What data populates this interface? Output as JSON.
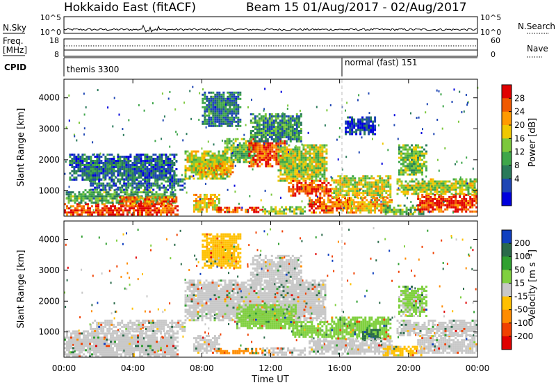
{
  "header": {
    "title": "Hokkaido East (fitACF)",
    "subtitle": "Beam 15 01/Aug/2017 - 02/Aug/2017"
  },
  "top_panels": {
    "nsky_label": "N.Sky",
    "nsearch_label": "N.Search",
    "nsky_ticks": [
      "10^5",
      "10^0"
    ],
    "nsearch_ticks": [
      "10^5",
      "10^0"
    ],
    "freq_label_line1": "Freq.",
    "freq_label_line2": "[MHz]",
    "freq_ticks": [
      "18",
      "8"
    ],
    "nave_label": "Nave",
    "nave_ticks": [
      "60",
      "0"
    ],
    "cpid_label": "CPID",
    "cpid_segments": [
      {
        "label": "themis 3300",
        "start_hour": 0
      },
      {
        "label": "normal (fast) 151",
        "start_hour": 16
      }
    ]
  },
  "chart_data": [
    {
      "type": "heatmap",
      "panel": "power",
      "ylabel": "Slant Range [km]",
      "yticks": [
        1000,
        2000,
        3000,
        4000
      ],
      "ylim": [
        180,
        4600
      ],
      "xlim": [
        0,
        24
      ],
      "xticks": [
        0,
        4,
        8,
        12,
        16,
        20,
        24
      ],
      "colorbar": {
        "label": "Power [dB]",
        "ticks": [
          "28",
          "24",
          "20",
          "16",
          "12",
          "8",
          "4"
        ],
        "colors": [
          "#0000dd",
          "#1e46b4",
          "#2a7a5a",
          "#3ea64a",
          "#7cc83c",
          "#f0c800",
          "#ff9a00",
          "#f05a00",
          "#e00000"
        ]
      },
      "regions": [
        {
          "t0": 0.0,
          "t1": 6.6,
          "r0": 200,
          "r1": 600,
          "value": 27
        },
        {
          "t0": 0.1,
          "t1": 6.5,
          "r0": 600,
          "r1": 1050,
          "value": 13
        },
        {
          "t0": 1.5,
          "t1": 7.0,
          "r0": 1050,
          "r1": 1400,
          "value": 9
        },
        {
          "t0": 3.2,
          "t1": 6.5,
          "r0": 520,
          "r1": 820,
          "value": 24
        },
        {
          "t0": 0.3,
          "t1": 6.5,
          "r0": 1350,
          "r1": 2200,
          "value": 8
        },
        {
          "t0": 7.0,
          "t1": 9.6,
          "r0": 1400,
          "r1": 2300,
          "value": 17
        },
        {
          "t0": 7.8,
          "t1": 9.8,
          "r0": 1500,
          "r1": 1900,
          "value": 22
        },
        {
          "t0": 9.3,
          "t1": 11.2,
          "r0": 1900,
          "r1": 2700,
          "value": 15
        },
        {
          "t0": 10.7,
          "t1": 12.8,
          "r0": 1800,
          "r1": 2700,
          "value": 26
        },
        {
          "t0": 12.4,
          "t1": 15.2,
          "r0": 1300,
          "r1": 2500,
          "value": 17
        },
        {
          "t0": 10.8,
          "t1": 13.8,
          "r0": 2600,
          "r1": 3500,
          "value": 11
        },
        {
          "t0": 8.0,
          "t1": 10.2,
          "r0": 3100,
          "r1": 4200,
          "value": 10
        },
        {
          "t0": 7.5,
          "t1": 9.0,
          "r0": 350,
          "r1": 900,
          "value": 20
        },
        {
          "t0": 8.8,
          "t1": 11.5,
          "r0": 280,
          "r1": 480,
          "value": 27
        },
        {
          "t0": 11.5,
          "t1": 14.0,
          "r0": 250,
          "r1": 500,
          "value": 16
        },
        {
          "t0": 13.0,
          "t1": 15.5,
          "r0": 850,
          "r1": 1350,
          "value": 26
        },
        {
          "t0": 14.2,
          "t1": 16.8,
          "r0": 300,
          "r1": 800,
          "value": 25
        },
        {
          "t0": 15.5,
          "t1": 19.0,
          "r0": 800,
          "r1": 1500,
          "value": 18
        },
        {
          "t0": 16.3,
          "t1": 19.0,
          "r0": 300,
          "r1": 800,
          "value": 21
        },
        {
          "t0": 18.5,
          "t1": 20.8,
          "r0": 250,
          "r1": 550,
          "value": 14
        },
        {
          "t0": 20.5,
          "t1": 24.0,
          "r0": 300,
          "r1": 900,
          "value": 27
        },
        {
          "t0": 19.3,
          "t1": 24.0,
          "r0": 900,
          "r1": 1400,
          "value": 17
        },
        {
          "t0": 19.4,
          "t1": 21.0,
          "r0": 1500,
          "r1": 2500,
          "value": 15
        },
        {
          "t0": 16.3,
          "t1": 18.0,
          "r0": 2800,
          "r1": 3400,
          "value": 6
        }
      ]
    },
    {
      "type": "heatmap",
      "panel": "velocity",
      "ylabel": "Slant Range [km]",
      "xlabel": "Time UT",
      "xtick_labels": [
        "00:00",
        "04:00",
        "08:00",
        "12:00",
        "16:00",
        "20:00",
        "00:00"
      ],
      "yticks": [
        1000,
        2000,
        3000,
        4000
      ],
      "ylim": [
        180,
        4600
      ],
      "xlim": [
        0,
        24
      ],
      "xticks": [
        0,
        4,
        8,
        12,
        16,
        20,
        24
      ],
      "colorbar": {
        "label": "Velocity [m s^-1]",
        "ticks": [
          "200",
          "100",
          "50",
          "15",
          "-15",
          "-50",
          "-100",
          "-200"
        ],
        "colors": [
          "#e00000",
          "#f04000",
          "#ff8c00",
          "#ffc000",
          "#c8c8c8",
          "#80d040",
          "#30a030",
          "#2a6a4a",
          "#1040c0"
        ]
      },
      "regions": [
        {
          "t0": 0.0,
          "t1": 6.6,
          "r0": 200,
          "r1": 1050,
          "value": 0
        },
        {
          "t0": 1.5,
          "t1": 7.0,
          "r0": 1050,
          "r1": 1400,
          "value": 0
        },
        {
          "t0": 7.0,
          "t1": 15.2,
          "r0": 1400,
          "r1": 2700,
          "value": 0
        },
        {
          "t0": 10.8,
          "t1": 13.8,
          "r0": 2600,
          "r1": 3500,
          "value": 0
        },
        {
          "t0": 8.0,
          "t1": 10.2,
          "r0": 3100,
          "r1": 4200,
          "value": -40
        },
        {
          "t0": 7.5,
          "t1": 9.0,
          "r0": 350,
          "r1": 900,
          "value": 0
        },
        {
          "t0": 8.8,
          "t1": 11.5,
          "r0": 280,
          "r1": 480,
          "value": -60
        },
        {
          "t0": 11.5,
          "t1": 14.0,
          "r0": 250,
          "r1": 500,
          "value": 0
        },
        {
          "t0": 10.0,
          "t1": 13.5,
          "r0": 1100,
          "r1": 1900,
          "value": 40
        },
        {
          "t0": 13.0,
          "t1": 15.5,
          "r0": 850,
          "r1": 1350,
          "value": 30
        },
        {
          "t0": 14.2,
          "t1": 16.8,
          "r0": 300,
          "r1": 800,
          "value": 0
        },
        {
          "t0": 15.5,
          "t1": 19.0,
          "r0": 800,
          "r1": 1500,
          "value": 35
        },
        {
          "t0": 17.3,
          "t1": 18.3,
          "r0": 750,
          "r1": 1100,
          "value": 150
        },
        {
          "t0": 16.3,
          "t1": 19.0,
          "r0": 300,
          "r1": 800,
          "value": 0
        },
        {
          "t0": 18.5,
          "t1": 20.8,
          "r0": 250,
          "r1": 550,
          "value": -40
        },
        {
          "t0": 20.5,
          "t1": 24.0,
          "r0": 300,
          "r1": 900,
          "value": 0
        },
        {
          "t0": 19.3,
          "t1": 24.0,
          "r0": 900,
          "r1": 1400,
          "value": 0
        },
        {
          "t0": 19.4,
          "t1": 21.0,
          "r0": 1500,
          "r1": 2500,
          "value": 20
        }
      ]
    }
  ]
}
